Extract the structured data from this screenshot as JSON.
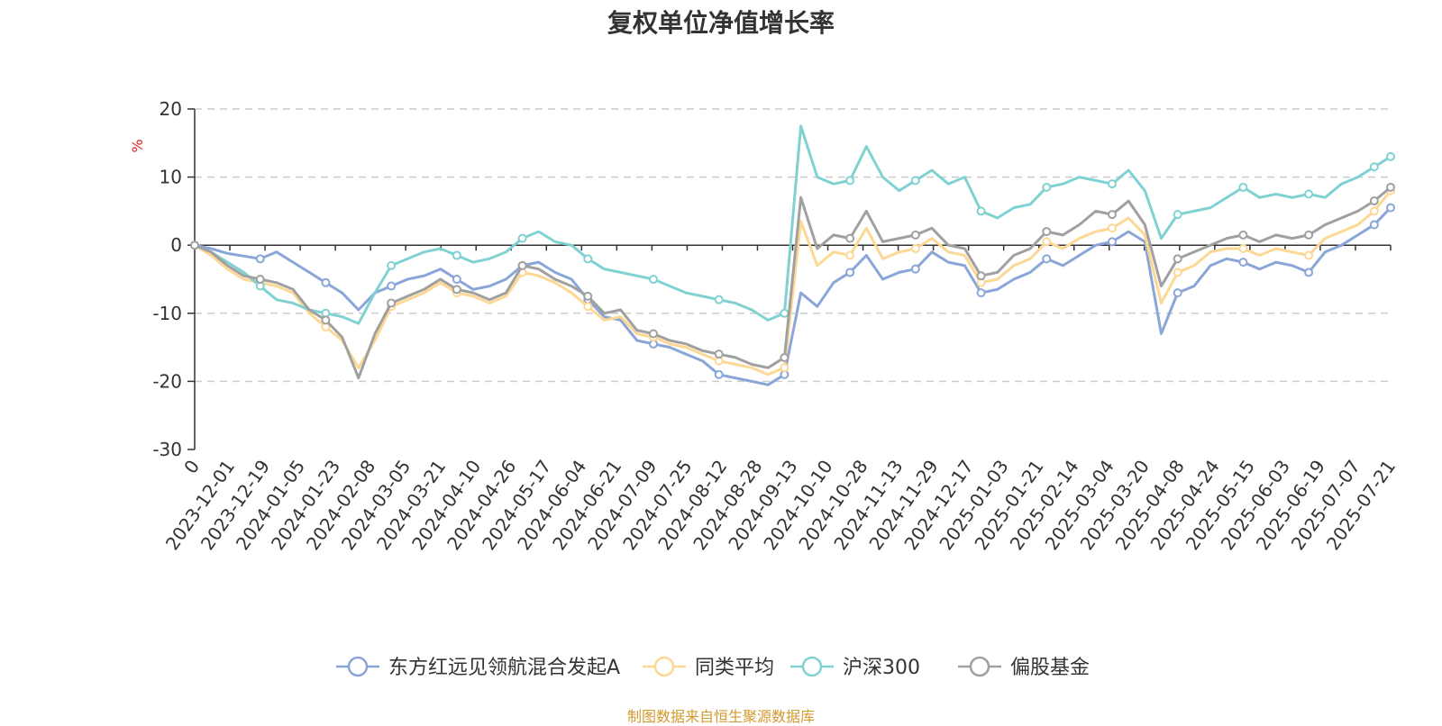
{
  "chart_data": {
    "type": "line",
    "title": "复权单位净值增长率",
    "ylabel": "%",
    "ylim": [
      -30,
      20
    ],
    "yticks": [
      -30,
      -20,
      -10,
      0,
      10,
      20
    ],
    "grid": true,
    "legend_position": "bottom",
    "x_tick_labels": [
      "0",
      "2023-12-01",
      "2023-12-19",
      "2024-01-05",
      "2024-01-23",
      "2024-02-08",
      "2024-03-05",
      "2024-03-21",
      "2024-04-10",
      "2024-04-26",
      "2024-05-17",
      "2024-06-04",
      "2024-06-21",
      "2024-07-09",
      "2024-07-25",
      "2024-08-12",
      "2024-08-28",
      "2024-09-13",
      "2024-10-10",
      "2024-10-28",
      "2024-11-13",
      "2024-11-29",
      "2024-12-17",
      "2025-01-03",
      "2025-01-21",
      "2025-02-14",
      "2025-03-04",
      "2025-03-20",
      "2025-04-08",
      "2025-04-24",
      "2025-05-15",
      "2025-06-03",
      "2025-06-19",
      "2025-07-07",
      "2025-07-21"
    ],
    "series": [
      {
        "name": "东方红远见领航混合发起A",
        "color": "#8aa6d8",
        "values": [
          0.0,
          -0.5,
          -1.2,
          -1.6,
          -2.0,
          -1.0,
          -2.5,
          -4.0,
          -5.5,
          -7.0,
          -9.5,
          -7.0,
          -6.0,
          -5.0,
          -4.5,
          -3.5,
          -5.0,
          -6.5,
          -6.0,
          -5.0,
          -3.0,
          -2.5,
          -4.0,
          -5.0,
          -8.0,
          -10.5,
          -11.0,
          -14.0,
          -14.5,
          -15.0,
          -16.0,
          -17.0,
          -19.0,
          -19.5,
          -20.0,
          -20.5,
          -19.0,
          -7.0,
          -9.0,
          -5.5,
          -4.0,
          -1.5,
          -5.0,
          -4.0,
          -3.5,
          -1.0,
          -2.5,
          -3.0,
          -7.0,
          -6.5,
          -5.0,
          -4.0,
          -2.0,
          -3.0,
          -1.5,
          0.0,
          0.5,
          2.0,
          0.5,
          -13.0,
          -7.0,
          -6.0,
          -3.0,
          -2.0,
          -2.5,
          -3.5,
          -2.5,
          -3.0,
          -4.0,
          -1.0,
          0.0,
          1.5,
          3.0,
          5.5
        ]
      },
      {
        "name": "同类平均",
        "color": "#fdd894",
        "values": [
          0.0,
          -1.5,
          -3.5,
          -5.0,
          -5.5,
          -6.0,
          -7.0,
          -10.0,
          -12.0,
          -14.0,
          -18.0,
          -14.0,
          -9.0,
          -8.0,
          -7.0,
          -5.5,
          -7.0,
          -7.5,
          -8.5,
          -7.5,
          -4.0,
          -4.5,
          -5.5,
          -7.0,
          -9.0,
          -11.0,
          -10.5,
          -13.0,
          -13.5,
          -14.5,
          -15.0,
          -16.0,
          -17.0,
          -17.5,
          -18.0,
          -19.0,
          -18.0,
          3.5,
          -3.0,
          -1.0,
          -1.5,
          2.5,
          -2.0,
          -1.0,
          -0.5,
          1.0,
          -1.0,
          -1.5,
          -5.5,
          -5.0,
          -3.0,
          -2.0,
          0.5,
          -0.5,
          1.0,
          2.0,
          2.5,
          4.0,
          1.5,
          -8.5,
          -4.0,
          -3.0,
          -1.0,
          -0.5,
          -0.5,
          -1.5,
          -0.5,
          -1.0,
          -1.5,
          1.0,
          2.0,
          3.0,
          5.0,
          8.0
        ]
      },
      {
        "name": "沪深300",
        "color": "#80d2d2",
        "values": [
          0.0,
          -1.0,
          -2.5,
          -4.0,
          -6.0,
          -8.0,
          -8.5,
          -9.5,
          -10.0,
          -10.5,
          -11.5,
          -7.0,
          -3.0,
          -2.0,
          -1.0,
          -0.5,
          -1.5,
          -2.5,
          -2.0,
          -1.0,
          1.0,
          2.0,
          0.5,
          0.0,
          -2.0,
          -3.5,
          -4.0,
          -4.5,
          -5.0,
          -6.0,
          -7.0,
          -7.5,
          -8.0,
          -8.5,
          -9.5,
          -11.0,
          -10.0,
          17.5,
          10.0,
          9.0,
          9.5,
          14.5,
          10.0,
          8.0,
          9.5,
          11.0,
          9.0,
          10.0,
          5.0,
          4.0,
          5.5,
          6.0,
          8.5,
          9.0,
          10.0,
          9.5,
          9.0,
          11.0,
          8.0,
          1.0,
          4.5,
          5.0,
          5.5,
          7.0,
          8.5,
          7.0,
          7.5,
          7.0,
          7.5,
          7.0,
          9.0,
          10.0,
          11.5,
          13.0
        ]
      },
      {
        "name": "偏股基金",
        "color": "#a0a0a0",
        "values": [
          0.0,
          -1.0,
          -3.0,
          -4.5,
          -5.0,
          -5.5,
          -6.5,
          -9.5,
          -11.0,
          -13.5,
          -19.5,
          -13.0,
          -8.5,
          -7.5,
          -6.5,
          -5.0,
          -6.5,
          -7.0,
          -8.0,
          -7.0,
          -3.0,
          -3.5,
          -5.0,
          -6.0,
          -7.5,
          -10.0,
          -9.5,
          -12.5,
          -13.0,
          -14.0,
          -14.5,
          -15.5,
          -16.0,
          -16.5,
          -17.5,
          -18.0,
          -16.5,
          7.0,
          -0.5,
          1.5,
          1.0,
          5.0,
          0.5,
          1.0,
          1.5,
          2.5,
          0.0,
          -0.5,
          -4.5,
          -4.0,
          -1.5,
          -0.5,
          2.0,
          1.5,
          3.0,
          5.0,
          4.5,
          6.5,
          3.0,
          -6.0,
          -2.0,
          -1.0,
          0.0,
          1.0,
          1.5,
          0.5,
          1.5,
          1.0,
          1.5,
          3.0,
          4.0,
          5.0,
          6.5,
          8.5
        ]
      }
    ]
  },
  "source_note": "制图数据来自恒生聚源数据库"
}
